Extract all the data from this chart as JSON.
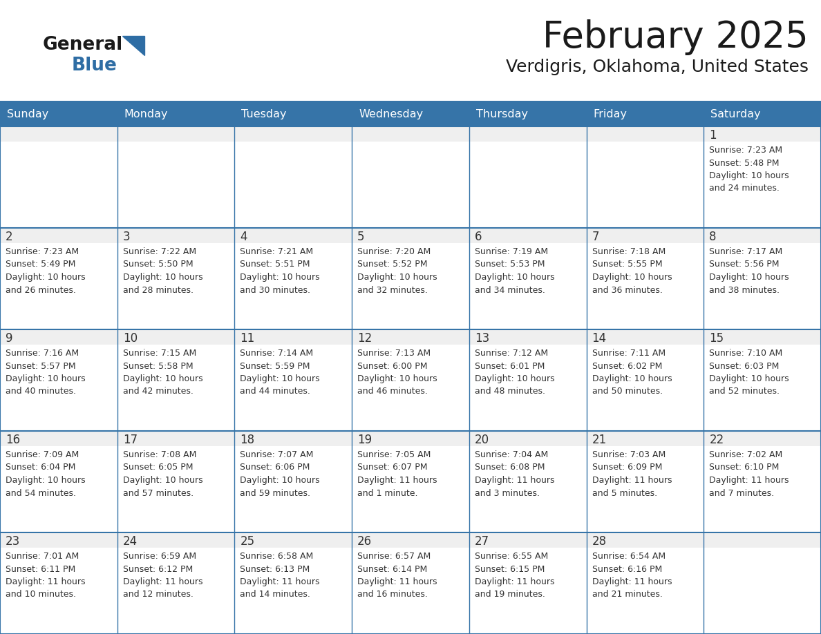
{
  "title": "February 2025",
  "subtitle": "Verdigris, Oklahoma, United States",
  "days_of_week": [
    "Sunday",
    "Monday",
    "Tuesday",
    "Wednesday",
    "Thursday",
    "Friday",
    "Saturday"
  ],
  "header_bg": "#3674a8",
  "header_text": "#FFFFFF",
  "cell_bg_top": "#EFEFEF",
  "cell_bg_bottom": "#FFFFFF",
  "text_color": "#333333",
  "day_number_color": "#333333",
  "border_color": "#3674a8",
  "logo_color_general": "#1a1a1a",
  "logo_color_blue": "#2E6DA4",
  "logo_triangle_color": "#2E6DA4",
  "calendar_data": [
    [
      null,
      null,
      null,
      null,
      null,
      null,
      {
        "day": 1,
        "sunrise": "7:23 AM",
        "sunset": "5:48 PM",
        "daylight": "10 hours",
        "daylight2": "and 24 minutes."
      }
    ],
    [
      {
        "day": 2,
        "sunrise": "7:23 AM",
        "sunset": "5:49 PM",
        "daylight": "10 hours",
        "daylight2": "and 26 minutes."
      },
      {
        "day": 3,
        "sunrise": "7:22 AM",
        "sunset": "5:50 PM",
        "daylight": "10 hours",
        "daylight2": "and 28 minutes."
      },
      {
        "day": 4,
        "sunrise": "7:21 AM",
        "sunset": "5:51 PM",
        "daylight": "10 hours",
        "daylight2": "and 30 minutes."
      },
      {
        "day": 5,
        "sunrise": "7:20 AM",
        "sunset": "5:52 PM",
        "daylight": "10 hours",
        "daylight2": "and 32 minutes."
      },
      {
        "day": 6,
        "sunrise": "7:19 AM",
        "sunset": "5:53 PM",
        "daylight": "10 hours",
        "daylight2": "and 34 minutes."
      },
      {
        "day": 7,
        "sunrise": "7:18 AM",
        "sunset": "5:55 PM",
        "daylight": "10 hours",
        "daylight2": "and 36 minutes."
      },
      {
        "day": 8,
        "sunrise": "7:17 AM",
        "sunset": "5:56 PM",
        "daylight": "10 hours",
        "daylight2": "and 38 minutes."
      }
    ],
    [
      {
        "day": 9,
        "sunrise": "7:16 AM",
        "sunset": "5:57 PM",
        "daylight": "10 hours",
        "daylight2": "and 40 minutes."
      },
      {
        "day": 10,
        "sunrise": "7:15 AM",
        "sunset": "5:58 PM",
        "daylight": "10 hours",
        "daylight2": "and 42 minutes."
      },
      {
        "day": 11,
        "sunrise": "7:14 AM",
        "sunset": "5:59 PM",
        "daylight": "10 hours",
        "daylight2": "and 44 minutes."
      },
      {
        "day": 12,
        "sunrise": "7:13 AM",
        "sunset": "6:00 PM",
        "daylight": "10 hours",
        "daylight2": "and 46 minutes."
      },
      {
        "day": 13,
        "sunrise": "7:12 AM",
        "sunset": "6:01 PM",
        "daylight": "10 hours",
        "daylight2": "and 48 minutes."
      },
      {
        "day": 14,
        "sunrise": "7:11 AM",
        "sunset": "6:02 PM",
        "daylight": "10 hours",
        "daylight2": "and 50 minutes."
      },
      {
        "day": 15,
        "sunrise": "7:10 AM",
        "sunset": "6:03 PM",
        "daylight": "10 hours",
        "daylight2": "and 52 minutes."
      }
    ],
    [
      {
        "day": 16,
        "sunrise": "7:09 AM",
        "sunset": "6:04 PM",
        "daylight": "10 hours",
        "daylight2": "and 54 minutes."
      },
      {
        "day": 17,
        "sunrise": "7:08 AM",
        "sunset": "6:05 PM",
        "daylight": "10 hours",
        "daylight2": "and 57 minutes."
      },
      {
        "day": 18,
        "sunrise": "7:07 AM",
        "sunset": "6:06 PM",
        "daylight": "10 hours",
        "daylight2": "and 59 minutes."
      },
      {
        "day": 19,
        "sunrise": "7:05 AM",
        "sunset": "6:07 PM",
        "daylight": "11 hours",
        "daylight2": "and 1 minute."
      },
      {
        "day": 20,
        "sunrise": "7:04 AM",
        "sunset": "6:08 PM",
        "daylight": "11 hours",
        "daylight2": "and 3 minutes."
      },
      {
        "day": 21,
        "sunrise": "7:03 AM",
        "sunset": "6:09 PM",
        "daylight": "11 hours",
        "daylight2": "and 5 minutes."
      },
      {
        "day": 22,
        "sunrise": "7:02 AM",
        "sunset": "6:10 PM",
        "daylight": "11 hours",
        "daylight2": "and 7 minutes."
      }
    ],
    [
      {
        "day": 23,
        "sunrise": "7:01 AM",
        "sunset": "6:11 PM",
        "daylight": "11 hours",
        "daylight2": "and 10 minutes."
      },
      {
        "day": 24,
        "sunrise": "6:59 AM",
        "sunset": "6:12 PM",
        "daylight": "11 hours",
        "daylight2": "and 12 minutes."
      },
      {
        "day": 25,
        "sunrise": "6:58 AM",
        "sunset": "6:13 PM",
        "daylight": "11 hours",
        "daylight2": "and 14 minutes."
      },
      {
        "day": 26,
        "sunrise": "6:57 AM",
        "sunset": "6:14 PM",
        "daylight": "11 hours",
        "daylight2": "and 16 minutes."
      },
      {
        "day": 27,
        "sunrise": "6:55 AM",
        "sunset": "6:15 PM",
        "daylight": "11 hours",
        "daylight2": "and 19 minutes."
      },
      {
        "day": 28,
        "sunrise": "6:54 AM",
        "sunset": "6:16 PM",
        "daylight": "11 hours",
        "daylight2": "and 21 minutes."
      },
      null
    ]
  ]
}
